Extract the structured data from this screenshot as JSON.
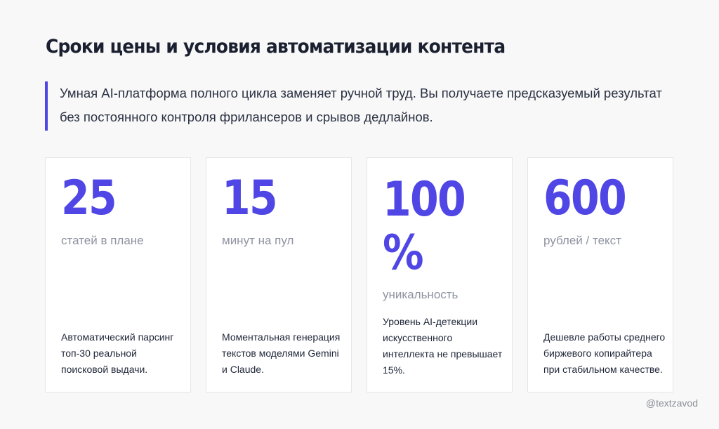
{
  "header": {
    "title": "Сроки цены и условия автоматизации контента",
    "subtitle_line1": "Умная AI-платформа полного цикла заменяет ручной труд. Вы получаете предсказуемый результат",
    "subtitle_line2": "без постоянного контроля фрилансеров и срывов дедлайнов."
  },
  "cards": [
    {
      "value": "25",
      "unit": "статей в плане",
      "description": "Автоматический парсинг топ-30 реальной поисковой выдачи."
    },
    {
      "value": "15",
      "unit": "минут на пул",
      "description": "Моментальная генерация текстов моделями Gemini и Claude."
    },
    {
      "value": "100 %",
      "unit": "уникальность",
      "description": "Уровень AI-детекции искусственного интеллекта не превышает 15%."
    },
    {
      "value": "600",
      "unit": "рублей / текст",
      "description": "Дешевле работы среднего биржевого копирайтера при стабильном качестве."
    }
  ],
  "footer": {
    "watermark": "@textzavod"
  },
  "colors": {
    "accent": "#4f46e5",
    "background": "#f8f8f8",
    "card": "#ffffff",
    "muted_text": "#8e93a1"
  }
}
